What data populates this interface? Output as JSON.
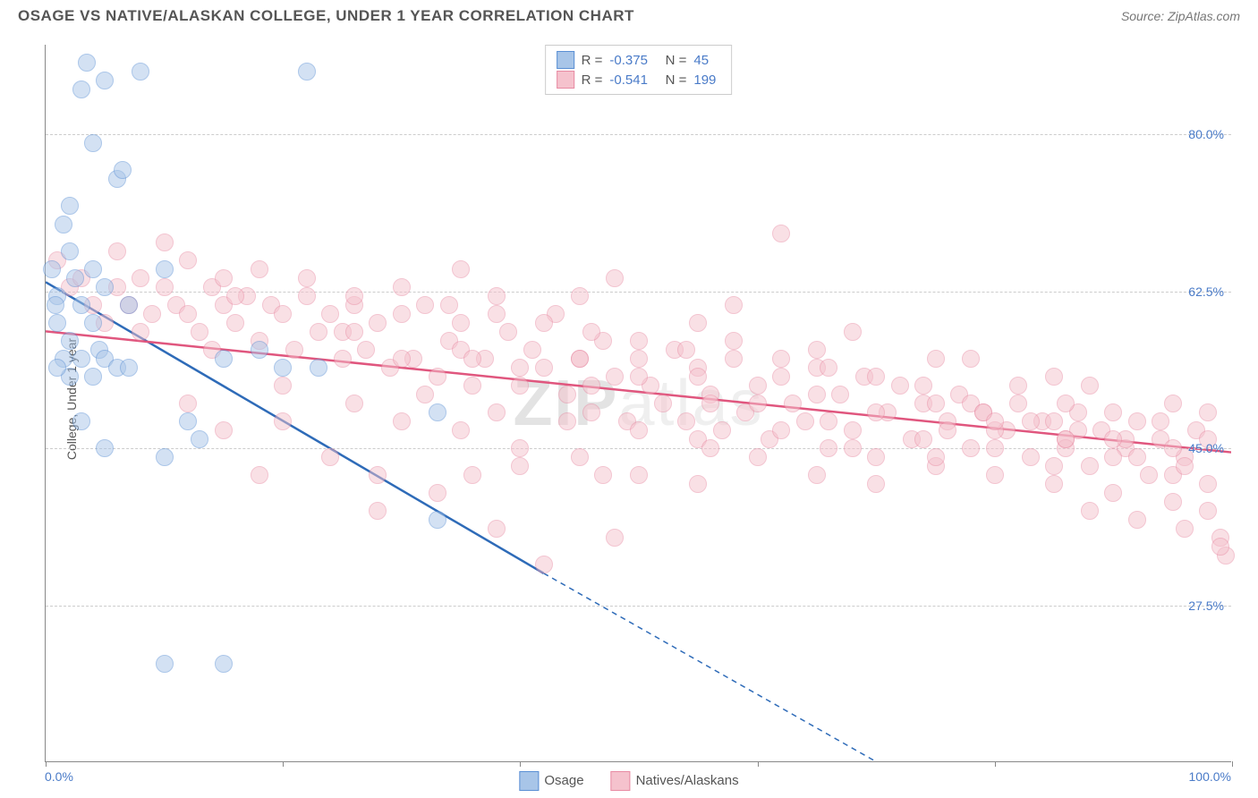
{
  "header": {
    "title": "OSAGE VS NATIVE/ALASKAN COLLEGE, UNDER 1 YEAR CORRELATION CHART",
    "source": "Source: ZipAtlas.com"
  },
  "watermark": {
    "bold": "ZIP",
    "light": "atlas"
  },
  "chart": {
    "type": "scatter",
    "ylabel": "College, Under 1 year",
    "xlim": [
      0,
      100
    ],
    "ylim": [
      10,
      90
    ],
    "y_ticks": [
      27.5,
      45.0,
      62.5,
      80.0
    ],
    "y_tick_labels": [
      "27.5%",
      "45.0%",
      "62.5%",
      "80.0%"
    ],
    "x_ticks": [
      0,
      20,
      40,
      60,
      80,
      100
    ],
    "x_tick_labels_shown": {
      "0": "0.0%",
      "100": "100.0%"
    },
    "background_color": "#ffffff",
    "grid_color": "#cccccc",
    "marker_radius": 10,
    "marker_opacity": 0.5,
    "series": [
      {
        "name": "Osage",
        "fill_color": "#a8c5e8",
        "stroke_color": "#5a8fd4",
        "line_color": "#2e6bb8",
        "line_width": 2.5,
        "R": "-0.375",
        "N": "45",
        "trend": {
          "x1": 0,
          "y1": 63.5,
          "x2_solid": 42,
          "y2_solid": 31,
          "x2_dash": 70,
          "y2_dash": 10
        },
        "points": [
          [
            0.5,
            65
          ],
          [
            1,
            62
          ],
          [
            1.5,
            70
          ],
          [
            2,
            67
          ],
          [
            2.5,
            64
          ],
          [
            1,
            59
          ],
          [
            0.8,
            61
          ],
          [
            2,
            72
          ],
          [
            3,
            85
          ],
          [
            3.5,
            88
          ],
          [
            4,
            79
          ],
          [
            5,
            86
          ],
          [
            6,
            75
          ],
          [
            6.5,
            76
          ],
          [
            8,
            87
          ],
          [
            4,
            65
          ],
          [
            3,
            61
          ],
          [
            5,
            63
          ],
          [
            4.5,
            56
          ],
          [
            3,
            55
          ],
          [
            4,
            53
          ],
          [
            5,
            55
          ],
          [
            6,
            54
          ],
          [
            7,
            54
          ],
          [
            2,
            57
          ],
          [
            1.5,
            55
          ],
          [
            3,
            48
          ],
          [
            5,
            45
          ],
          [
            10,
            44
          ],
          [
            12,
            48
          ],
          [
            13,
            46
          ],
          [
            15,
            55
          ],
          [
            22,
            87
          ],
          [
            18,
            56
          ],
          [
            20,
            54
          ],
          [
            23,
            54
          ],
          [
            10,
            65
          ],
          [
            4,
            59
          ],
          [
            2,
            53
          ],
          [
            1,
            54
          ],
          [
            10,
            21
          ],
          [
            15,
            21
          ],
          [
            7,
            61
          ],
          [
            33,
            37
          ],
          [
            33,
            49
          ]
        ]
      },
      {
        "name": "Natives/Alaskans",
        "fill_color": "#f5c2cd",
        "stroke_color": "#e88ba3",
        "line_color": "#e0567e",
        "line_width": 2.5,
        "R": "-0.541",
        "N": "199",
        "trend": {
          "x1": 0,
          "y1": 58,
          "x2_solid": 100,
          "y2_solid": 44.5
        },
        "points": [
          [
            1,
            66
          ],
          [
            2,
            63
          ],
          [
            3,
            64
          ],
          [
            4,
            61
          ],
          [
            5,
            59
          ],
          [
            6,
            63
          ],
          [
            7,
            61
          ],
          [
            8,
            64
          ],
          [
            9,
            60
          ],
          [
            10,
            63
          ],
          [
            11,
            61
          ],
          [
            12,
            60
          ],
          [
            13,
            58
          ],
          [
            14,
            63
          ],
          [
            15,
            61
          ],
          [
            16,
            59
          ],
          [
            17,
            62
          ],
          [
            18,
            57
          ],
          [
            19,
            61
          ],
          [
            20,
            60
          ],
          [
            21,
            56
          ],
          [
            22,
            62
          ],
          [
            23,
            58
          ],
          [
            24,
            60
          ],
          [
            25,
            55
          ],
          [
            26,
            61
          ],
          [
            27,
            56
          ],
          [
            28,
            59
          ],
          [
            29,
            54
          ],
          [
            30,
            60
          ],
          [
            31,
            55
          ],
          [
            32,
            61
          ],
          [
            33,
            53
          ],
          [
            34,
            57
          ],
          [
            35,
            59
          ],
          [
            36,
            52
          ],
          [
            37,
            55
          ],
          [
            38,
            60
          ],
          [
            39,
            58
          ],
          [
            40,
            52
          ],
          [
            41,
            56
          ],
          [
            42,
            54
          ],
          [
            43,
            60
          ],
          [
            44,
            51
          ],
          [
            45,
            55
          ],
          [
            46,
            49
          ],
          [
            47,
            57
          ],
          [
            48,
            53
          ],
          [
            49,
            48
          ],
          [
            50,
            55
          ],
          [
            51,
            52
          ],
          [
            52,
            50
          ],
          [
            53,
            56
          ],
          [
            54,
            48
          ],
          [
            55,
            54
          ],
          [
            56,
            51
          ],
          [
            57,
            47
          ],
          [
            58,
            55
          ],
          [
            59,
            49
          ],
          [
            60,
            52
          ],
          [
            61,
            46
          ],
          [
            62,
            53
          ],
          [
            63,
            50
          ],
          [
            64,
            48
          ],
          [
            65,
            54
          ],
          [
            66,
            45
          ],
          [
            67,
            51
          ],
          [
            68,
            47
          ],
          [
            69,
            53
          ],
          [
            70,
            44
          ],
          [
            71,
            49
          ],
          [
            72,
            52
          ],
          [
            73,
            46
          ],
          [
            74,
            50
          ],
          [
            75,
            43
          ],
          [
            76,
            48
          ],
          [
            77,
            51
          ],
          [
            78,
            45
          ],
          [
            79,
            49
          ],
          [
            80,
            42
          ],
          [
            81,
            47
          ],
          [
            82,
            50
          ],
          [
            83,
            44
          ],
          [
            84,
            48
          ],
          [
            85,
            41
          ],
          [
            86,
            46
          ],
          [
            87,
            49
          ],
          [
            88,
            43
          ],
          [
            89,
            47
          ],
          [
            90,
            40
          ],
          [
            91,
            45
          ],
          [
            92,
            48
          ],
          [
            93,
            42
          ],
          [
            94,
            46
          ],
          [
            95,
            39
          ],
          [
            96,
            44
          ],
          [
            97,
            47
          ],
          [
            98,
            41
          ],
          [
            99,
            35
          ],
          [
            99.5,
            33
          ],
          [
            62,
            69
          ],
          [
            55,
            41
          ],
          [
            47,
            42
          ],
          [
            40,
            43
          ],
          [
            36,
            42
          ],
          [
            33,
            40
          ],
          [
            28,
            42
          ],
          [
            24,
            44
          ],
          [
            20,
            48
          ],
          [
            18,
            42
          ],
          [
            15,
            47
          ],
          [
            12,
            50
          ],
          [
            30,
            48
          ],
          [
            35,
            47
          ],
          [
            40,
            45
          ],
          [
            45,
            44
          ],
          [
            50,
            42
          ],
          [
            42,
            32
          ],
          [
            55,
            46
          ],
          [
            60,
            44
          ],
          [
            65,
            42
          ],
          [
            70,
            41
          ],
          [
            75,
            44
          ],
          [
            80,
            45
          ],
          [
            85,
            43
          ],
          [
            90,
            44
          ],
          [
            95,
            42
          ],
          [
            10,
            68
          ],
          [
            12,
            66
          ],
          [
            15,
            64
          ],
          [
            18,
            65
          ],
          [
            22,
            64
          ],
          [
            26,
            62
          ],
          [
            30,
            63
          ],
          [
            34,
            61
          ],
          [
            38,
            62
          ],
          [
            42,
            59
          ],
          [
            46,
            58
          ],
          [
            50,
            57
          ],
          [
            54,
            56
          ],
          [
            58,
            57
          ],
          [
            62,
            55
          ],
          [
            66,
            54
          ],
          [
            70,
            53
          ],
          [
            74,
            52
          ],
          [
            78,
            50
          ],
          [
            82,
            52
          ],
          [
            86,
            50
          ],
          [
            90,
            49
          ],
          [
            94,
            48
          ],
          [
            98,
            46
          ],
          [
            8,
            58
          ],
          [
            14,
            56
          ],
          [
            20,
            52
          ],
          [
            26,
            50
          ],
          [
            32,
            51
          ],
          [
            38,
            49
          ],
          [
            44,
            48
          ],
          [
            50,
            47
          ],
          [
            56,
            45
          ],
          [
            62,
            47
          ],
          [
            68,
            45
          ],
          [
            74,
            46
          ],
          [
            80,
            47
          ],
          [
            86,
            45
          ],
          [
            92,
            44
          ],
          [
            98,
            38
          ],
          [
            35,
            65
          ],
          [
            45,
            62
          ],
          [
            55,
            59
          ],
          [
            65,
            56
          ],
          [
            75,
            55
          ],
          [
            85,
            53
          ],
          [
            95,
            50
          ],
          [
            48,
            64
          ],
          [
            58,
            61
          ],
          [
            68,
            58
          ],
          [
            78,
            55
          ],
          [
            88,
            52
          ],
          [
            98,
            49
          ],
          [
            28,
            38
          ],
          [
            38,
            36
          ],
          [
            48,
            35
          ],
          [
            88,
            38
          ],
          [
            92,
            37
          ],
          [
            96,
            36
          ],
          [
            99,
            34
          ],
          [
            95,
            45
          ],
          [
            91,
            46
          ],
          [
            87,
            47
          ],
          [
            83,
            48
          ],
          [
            79,
            49
          ],
          [
            30,
            55
          ],
          [
            40,
            54
          ],
          [
            50,
            53
          ],
          [
            60,
            50
          ],
          [
            70,
            49
          ],
          [
            80,
            48
          ],
          [
            90,
            46
          ],
          [
            25,
            58
          ],
          [
            35,
            56
          ],
          [
            45,
            55
          ],
          [
            55,
            53
          ],
          [
            65,
            51
          ],
          [
            75,
            50
          ],
          [
            85,
            48
          ],
          [
            6,
            67
          ],
          [
            16,
            62
          ],
          [
            26,
            58
          ],
          [
            36,
            55
          ],
          [
            46,
            52
          ],
          [
            56,
            50
          ],
          [
            66,
            48
          ],
          [
            76,
            47
          ],
          [
            86,
            46
          ],
          [
            96,
            43
          ]
        ]
      }
    ],
    "bottom_legend": [
      {
        "swatch_fill": "#a8c5e8",
        "swatch_stroke": "#5a8fd4",
        "label": "Osage"
      },
      {
        "swatch_fill": "#f5c2cd",
        "swatch_stroke": "#e88ba3",
        "label": "Natives/Alaskans"
      }
    ]
  }
}
